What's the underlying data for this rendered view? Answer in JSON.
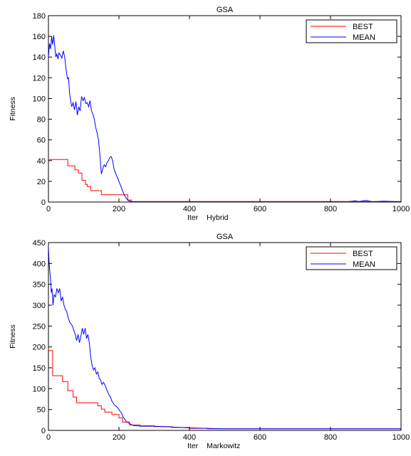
{
  "chart_data": [
    {
      "type": "line",
      "title": "GSA",
      "xlabel": "Iter",
      "xlabel_suffix": "Hybrid",
      "ylabel": "Fitness",
      "xlim": [
        0,
        1000
      ],
      "ylim": [
        0,
        180
      ],
      "xticks": [
        0,
        200,
        400,
        600,
        800,
        1000
      ],
      "yticks": [
        0,
        20,
        40,
        60,
        80,
        100,
        120,
        140,
        160,
        180
      ],
      "xtick_labels": [
        "0",
        "200",
        "400",
        "600",
        "800",
        "1000"
      ],
      "ytick_labels": [
        "0",
        "20",
        "40",
        "60",
        "80",
        "100",
        "120",
        "140",
        "160",
        "180"
      ],
      "grid": false,
      "legend_position": "top-right",
      "series": [
        {
          "name": "BEST",
          "color": "#ff0000",
          "step": true,
          "x": [
            0,
            50,
            55,
            75,
            85,
            95,
            105,
            110,
            120,
            140,
            150,
            160,
            180,
            210,
            225,
            235,
            1000
          ],
          "y": [
            41,
            41,
            35,
            31,
            28,
            21,
            17,
            15,
            11,
            11,
            7,
            7,
            7,
            7,
            2,
            0.5,
            0.5
          ]
        },
        {
          "name": "MEAN",
          "color": "#0000ff",
          "step": false,
          "x": [
            0,
            3,
            6,
            9,
            12,
            15,
            18,
            21,
            24,
            27,
            30,
            34,
            38,
            42,
            46,
            50,
            54,
            57,
            60,
            63,
            66,
            70,
            74,
            78,
            82,
            86,
            90,
            94,
            98,
            102,
            106,
            110,
            114,
            118,
            122,
            126,
            130,
            134,
            138,
            142,
            146,
            150,
            154,
            158,
            162,
            166,
            170,
            174,
            178,
            182,
            186,
            190,
            194,
            198,
            202,
            206,
            210,
            214,
            218,
            222,
            226,
            230,
            240,
            300,
            400,
            500,
            600,
            700,
            800,
            850,
            870,
            880,
            900,
            920,
            950,
            1000
          ],
          "y": [
            140,
            153,
            148,
            160,
            152,
            161,
            150,
            140,
            143,
            138,
            144,
            142,
            139,
            146,
            140,
            128,
            119,
            120,
            105,
            98,
            92,
            96,
            89,
            97,
            84,
            92,
            88,
            102,
            98,
            101,
            95,
            96,
            92,
            98,
            88,
            85,
            80,
            72,
            67,
            60,
            45,
            27,
            32,
            36,
            34,
            38,
            40,
            43,
            44,
            40,
            32,
            28,
            25,
            22,
            18,
            15,
            11,
            8,
            5,
            3,
            1.5,
            0.8,
            0.3,
            0.2,
            0.2,
            0.2,
            0.2,
            0.2,
            0.2,
            0.3,
            1.2,
            0.4,
            1.5,
            0.3,
            0.8,
            0.2
          ]
        }
      ]
    },
    {
      "type": "line",
      "title": "GSA",
      "xlabel": "Iter",
      "xlabel_suffix": "Markowitz",
      "ylabel": "Fitness",
      "xlim": [
        0,
        1000
      ],
      "ylim": [
        0,
        450
      ],
      "xticks": [
        0,
        200,
        400,
        600,
        800,
        1000
      ],
      "yticks": [
        0,
        50,
        100,
        150,
        200,
        250,
        300,
        350,
        400,
        450
      ],
      "xtick_labels": [
        "0",
        "200",
        "400",
        "600",
        "800",
        "1000"
      ],
      "ytick_labels": [
        "0",
        "50",
        "100",
        "150",
        "200",
        "250",
        "300",
        "350",
        "400",
        "450"
      ],
      "grid": false,
      "legend_position": "top-right",
      "series": [
        {
          "name": "BEST",
          "color": "#ff0000",
          "step": true,
          "x": [
            0,
            10,
            12,
            30,
            40,
            55,
            70,
            80,
            90,
            110,
            140,
            150,
            160,
            180,
            190,
            200,
            210,
            230,
            260,
            300,
            350,
            400,
            450,
            1000
          ],
          "y": [
            191,
            191,
            131,
            131,
            117,
            95,
            80,
            66,
            66,
            66,
            59,
            51,
            44,
            38,
            38,
            30,
            20,
            13,
            11,
            9,
            7,
            5,
            4,
            4
          ]
        },
        {
          "name": "MEAN",
          "color": "#0000ff",
          "step": false,
          "x": [
            0,
            2,
            4,
            6,
            8,
            10,
            13,
            16,
            20,
            24,
            28,
            32,
            36,
            40,
            44,
            48,
            52,
            56,
            60,
            64,
            68,
            72,
            76,
            80,
            84,
            88,
            92,
            96,
            100,
            104,
            108,
            112,
            116,
            120,
            124,
            128,
            132,
            136,
            140,
            144,
            148,
            152,
            156,
            160,
            164,
            168,
            172,
            176,
            180,
            184,
            188,
            192,
            196,
            200,
            204,
            208,
            212,
            216,
            220,
            230,
            240,
            260,
            300,
            350,
            400,
            450,
            500,
            1000
          ],
          "y": [
            440,
            400,
            380,
            360,
            330,
            340,
            300,
            325,
            320,
            340,
            330,
            340,
            310,
            320,
            300,
            290,
            285,
            270,
            260,
            255,
            250,
            240,
            230,
            215,
            230,
            210,
            225,
            245,
            230,
            245,
            220,
            230,
            210,
            175,
            155,
            145,
            150,
            135,
            140,
            125,
            120,
            110,
            115,
            110,
            100,
            92,
            85,
            80,
            70,
            65,
            60,
            58,
            55,
            50,
            45,
            40,
            32,
            28,
            22,
            16,
            12,
            10,
            10,
            8,
            6,
            5,
            4,
            4
          ]
        }
      ]
    }
  ]
}
